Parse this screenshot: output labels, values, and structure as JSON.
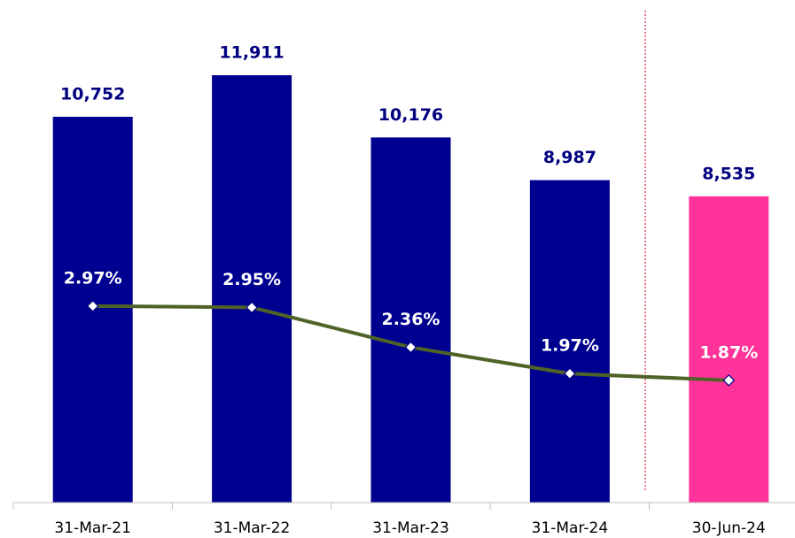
{
  "chart_data": {
    "type": "bar",
    "categories": [
      "31-Mar-21",
      "31-Mar-22",
      "31-Mar-23",
      "31-Mar-24",
      "30-Jun-24"
    ],
    "ylim": [
      0,
      13760
    ],
    "y2lim": [
      0.06,
      7.37
    ],
    "series": [
      {
        "type": "bar",
        "colors": [
          "#000090",
          "#000090",
          "#000090",
          "#000090",
          "#ff3399"
        ],
        "values": [
          10752,
          11911,
          10176,
          8987,
          8535
        ],
        "value_labels": [
          "10,752",
          "11,911",
          "10,176",
          "8,987",
          "8,535"
        ]
      },
      {
        "type": "line",
        "axis": "y2",
        "color": "#4f6228",
        "values": [
          2.97,
          2.95,
          2.36,
          1.97,
          1.87
        ],
        "value_labels": [
          "2.97%",
          "2.95%",
          "2.36%",
          "1.97%",
          "1.87%"
        ]
      }
    ]
  }
}
